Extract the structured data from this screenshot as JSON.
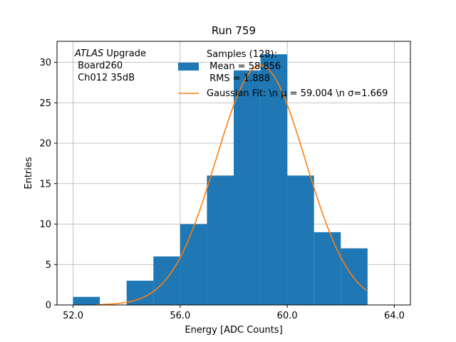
{
  "chart_data": {
    "type": "bar",
    "title": "Run 759",
    "xlabel": "Energy [ADC Counts]",
    "ylabel": "Entries",
    "xlim": [
      51.4,
      64.6
    ],
    "ylim": [
      0,
      32.6
    ],
    "xticks": [
      52,
      56,
      60,
      64
    ],
    "xtick_labels": [
      "52.0",
      "56.0",
      "60.0",
      "64.0"
    ],
    "yticks": [
      0,
      5,
      10,
      15,
      20,
      25,
      30
    ],
    "ytick_labels": [
      "0",
      "5",
      "10",
      "15",
      "20",
      "25",
      "30"
    ],
    "grid": true,
    "bins": [
      {
        "x0": 52,
        "x1": 53,
        "count": 1
      },
      {
        "x0": 53,
        "x1": 54,
        "count": 0
      },
      {
        "x0": 54,
        "x1": 55,
        "count": 3
      },
      {
        "x0": 55,
        "x1": 56,
        "count": 6
      },
      {
        "x0": 56,
        "x1": 57,
        "count": 10
      },
      {
        "x0": 57,
        "x1": 58,
        "count": 16
      },
      {
        "x0": 58,
        "x1": 59,
        "count": 29
      },
      {
        "x0": 59,
        "x1": 60,
        "count": 31
      },
      {
        "x0": 60,
        "x1": 61,
        "count": 16
      },
      {
        "x0": 61,
        "x1": 62,
        "count": 9
      },
      {
        "x0": 62,
        "x1": 63,
        "count": 7
      }
    ],
    "fit": {
      "mu": 59.004,
      "sigma": 1.669,
      "amplitude": 29.6,
      "x_range": [
        52.85,
        62.95
      ]
    },
    "bar_color": "#1f77b4",
    "fit_color": "#ff7f0e",
    "legend": {
      "placement": "upper-center",
      "entries": [
        {
          "kind": "bar",
          "lines": [
            "Samples (128):",
            " Mean = 58.856",
            " RMS = 1.888"
          ]
        },
        {
          "kind": "line",
          "lines": [
            "Gaussian Fit: \\n μ = 59.004 \\n σ=1.669"
          ]
        }
      ]
    },
    "annotation": {
      "atlas": "ATLAS",
      "upgrade": " Upgrade",
      "board": " Board260",
      "channel": " Ch012 35dB"
    }
  }
}
